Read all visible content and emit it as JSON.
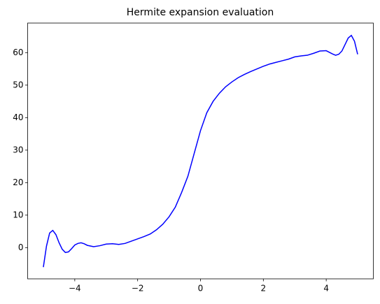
{
  "chart_data": {
    "type": "line",
    "title": "Hermite expansion evaluation",
    "x": [
      -5.0,
      -4.9,
      -4.8,
      -4.7,
      -4.6,
      -4.5,
      -4.4,
      -4.3,
      -4.2,
      -4.1,
      -4.0,
      -3.9,
      -3.8,
      -3.7,
      -3.6,
      -3.4,
      -3.2,
      -3.0,
      -2.8,
      -2.6,
      -2.4,
      -2.2,
      -2.0,
      -1.8,
      -1.6,
      -1.4,
      -1.2,
      -1.0,
      -0.8,
      -0.6,
      -0.4,
      -0.2,
      0,
      0.2,
      0.4,
      0.6,
      0.8,
      1.0,
      1.2,
      1.4,
      1.6,
      1.8,
      2.0,
      2.2,
      2.4,
      2.6,
      2.8,
      3.0,
      3.2,
      3.4,
      3.6,
      3.8,
      4.0,
      4.2,
      4.3,
      4.4,
      4.5,
      4.6,
      4.7,
      4.8,
      4.9,
      5.0
    ],
    "series": [
      {
        "color": "#0000ff",
        "values": [
          -6,
          0.5,
          4.5,
          5.3,
          4,
          1.5,
          -0.5,
          -1.5,
          -1.3,
          -0.3,
          0.8,
          1.3,
          1.5,
          1.2,
          0.7,
          0.3,
          0.6,
          1.1,
          1.2,
          1.0,
          1.3,
          2.0,
          2.7,
          3.4,
          4.2,
          5.5,
          7.2,
          9.5,
          12.5,
          17,
          22,
          29,
          36,
          41.5,
          45,
          47.5,
          49.5,
          51,
          52.3,
          53.3,
          54.2,
          55,
          55.8,
          56.5,
          57,
          57.5,
          58,
          58.7,
          59,
          59.2,
          59.8,
          60.5,
          60.6,
          59.6,
          59.2,
          59.5,
          60.5,
          62.5,
          64.5,
          65.3,
          63.5,
          59.5
        ]
      }
    ],
    "xlim": [
      -5.5,
      5.5
    ],
    "xticks": [
      {
        "value": -4,
        "label": "−4"
      },
      {
        "value": -2,
        "label": "−2"
      },
      0,
      2,
      4
    ],
    "ylim": [
      -9.6,
      69.1
    ],
    "yticks": [
      0,
      10,
      20,
      30,
      40,
      50,
      60
    ],
    "grid": false
  }
}
